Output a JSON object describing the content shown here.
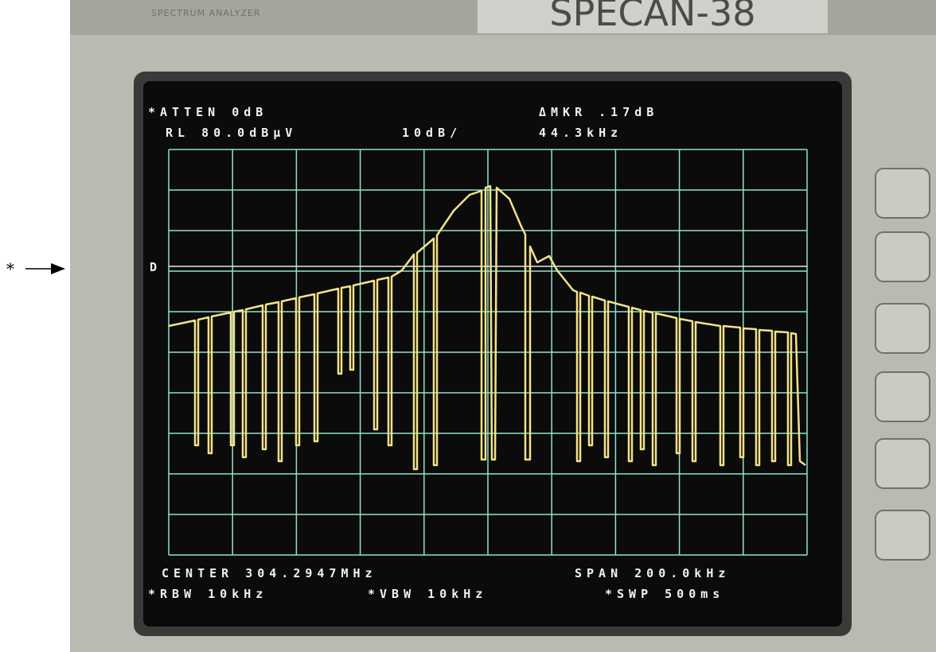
{
  "header": {
    "brand_label": "SPECTRUM ANALYZER",
    "model": "SPECAN-38"
  },
  "screen": {
    "atten": "*ATTEN 0dB",
    "ref_level": "RL 80.0dBµV",
    "scale": "10dB/",
    "marker_delta": "ΔMKR .17dB",
    "marker_freq": "44.3kHz",
    "display_line_label": "D",
    "center": "CENTER 304.2947MHz",
    "span": "SPAN 200.0kHz",
    "rbw": "*RBW 10kHz",
    "vbw": "*VBW 10kHz",
    "sweep": "*SWP 500ms"
  },
  "annotation": {
    "marker": "*"
  }
}
